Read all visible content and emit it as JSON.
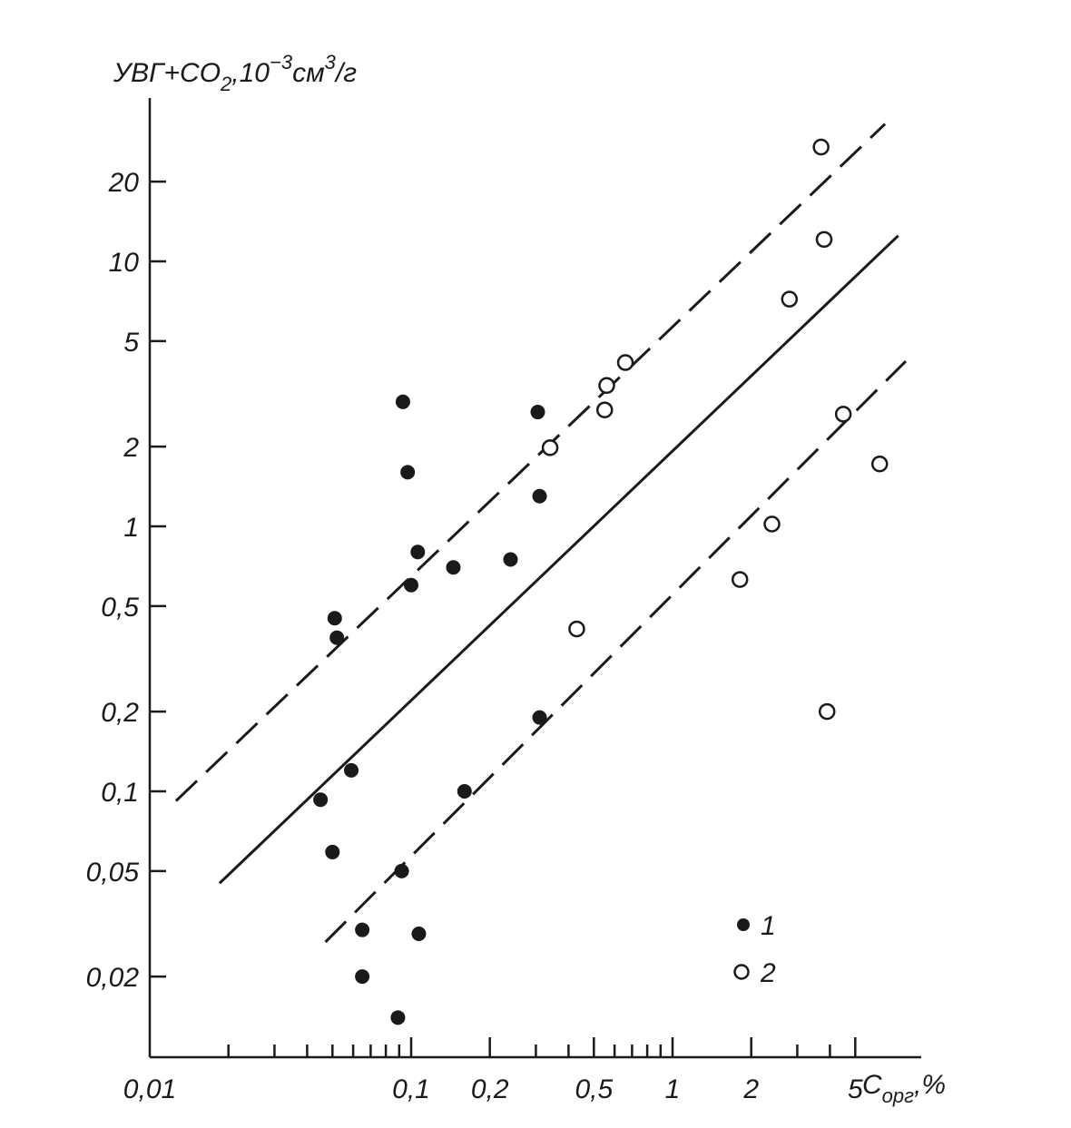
{
  "chart_data": {
    "type": "scatter",
    "x_scale": "log",
    "y_scale": "log",
    "xlim": [
      0.01,
      10
    ],
    "ylim": [
      0.013,
      40
    ],
    "xlabel": {
      "main": "C",
      "sub": "орг",
      "suffix": ",%"
    },
    "ylabel": {
      "main": "УВГ+CO",
      "sub": "2",
      "mid": ",10",
      "sup": "−3",
      "mid2": "см",
      "sup2": "3",
      "end": "/г"
    },
    "x_ticks_labeled": [
      {
        "value": 0.01,
        "label": "0,01"
      },
      {
        "value": 0.1,
        "label": "0,1"
      },
      {
        "value": 0.2,
        "label": "0,2"
      },
      {
        "value": 0.5,
        "label": "0,5"
      },
      {
        "value": 1,
        "label": "1"
      },
      {
        "value": 2,
        "label": "2"
      },
      {
        "value": 5,
        "label": "5"
      }
    ],
    "x_ticks_minor": [
      0.02,
      0.03,
      0.04,
      0.05,
      0.06,
      0.07,
      0.08,
      0.09,
      0.3,
      0.4,
      0.6,
      0.7,
      0.8,
      0.9,
      3,
      4
    ],
    "y_ticks_labeled": [
      {
        "value": 0.02,
        "label": "0,02"
      },
      {
        "value": 0.05,
        "label": "0,05"
      },
      {
        "value": 0.1,
        "label": "0,1"
      },
      {
        "value": 0.2,
        "label": "0,2"
      },
      {
        "value": 0.5,
        "label": "0,5"
      },
      {
        "value": 1,
        "label": "1"
      },
      {
        "value": 2,
        "label": "2"
      },
      {
        "value": 5,
        "label": "5"
      },
      {
        "value": 10,
        "label": "10"
      },
      {
        "value": 20,
        "label": "20"
      }
    ],
    "series": [
      {
        "name": "1",
        "marker": "filled-circle",
        "points": [
          [
            0.093,
            2.95
          ],
          [
            0.097,
            1.6
          ],
          [
            0.1,
            0.6
          ],
          [
            0.106,
            0.8
          ],
          [
            0.051,
            0.45
          ],
          [
            0.052,
            0.38
          ],
          [
            0.145,
            0.7
          ],
          [
            0.24,
            0.75
          ],
          [
            0.305,
            2.7
          ],
          [
            0.31,
            1.3
          ],
          [
            0.045,
            0.093
          ],
          [
            0.059,
            0.12
          ],
          [
            0.05,
            0.059
          ],
          [
            0.092,
            0.05
          ],
          [
            0.16,
            0.1
          ],
          [
            0.31,
            0.19
          ],
          [
            0.065,
            0.03
          ],
          [
            0.107,
            0.029
          ],
          [
            0.065,
            0.02
          ],
          [
            0.089,
            0.014
          ]
        ]
      },
      {
        "name": "2",
        "marker": "open-circle",
        "points": [
          [
            0.34,
            1.98
          ],
          [
            0.56,
            3.4
          ],
          [
            0.55,
            2.75
          ],
          [
            0.66,
            4.15
          ],
          [
            0.43,
            0.41
          ],
          [
            1.81,
            0.63
          ],
          [
            2.4,
            1.02
          ],
          [
            2.8,
            7.2
          ],
          [
            3.7,
            27
          ],
          [
            3.8,
            12.1
          ],
          [
            3.9,
            0.2
          ],
          [
            4.5,
            2.65
          ],
          [
            6.2,
            1.72
          ]
        ]
      }
    ],
    "lines": [
      {
        "style": "dashed",
        "points": [
          [
            0.0126,
            0.092
          ],
          [
            6.5,
            33
          ]
        ]
      },
      {
        "style": "solid",
        "points": [
          [
            0.0185,
            0.045
          ],
          [
            7.3,
            12.5
          ]
        ]
      },
      {
        "style": "dashed",
        "points": [
          [
            0.047,
            0.027
          ],
          [
            7.8,
            4.2
          ]
        ]
      }
    ],
    "legend": {
      "position": "bottom-right",
      "entries": [
        {
          "marker": "filled-circle",
          "label": "1"
        },
        {
          "marker": "open-circle",
          "label": "2"
        }
      ]
    }
  }
}
